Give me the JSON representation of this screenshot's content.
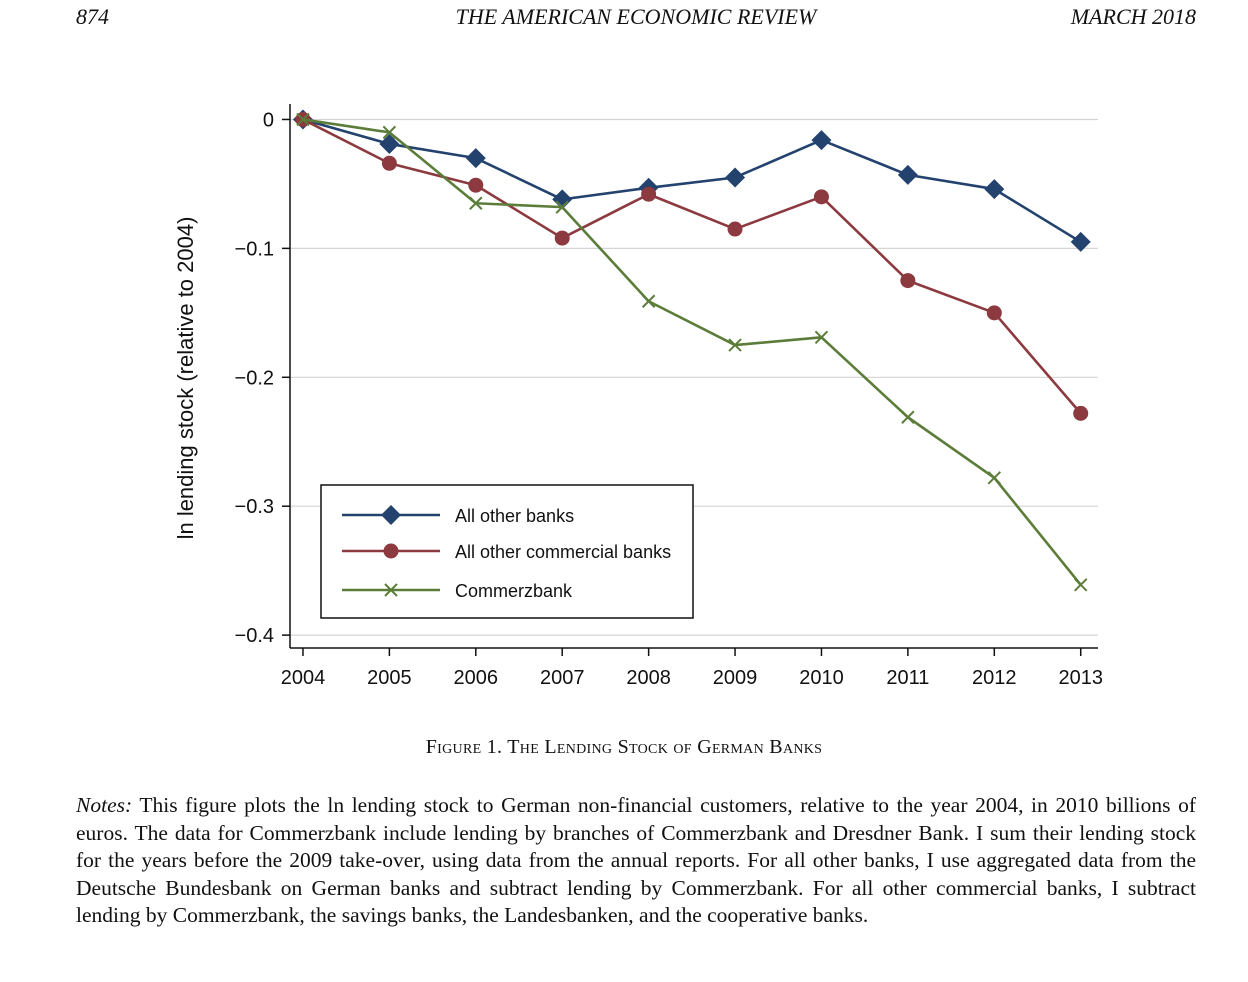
{
  "header": {
    "page_number": "874",
    "journal": "THE AMERICAN ECONOMIC REVIEW",
    "issue": "MARCH 2018"
  },
  "figure": {
    "caption": "Figure 1. The Lending Stock of German Banks",
    "notes_label": "Notes:",
    "notes_text": "This figure plots the ln lending stock to German non-financial customers, relative to the year 2004, in 2010 billions of euros. The data for Commerzbank include lending by branches of Commerzbank and Dresdner Bank. I sum their lending stock for the years before the 2009 take-over, using data from the annual reports. For all other banks, I use aggregated data from the Deutsche Bundesbank on German banks and subtract lending by Commerzbank. For all other commercial banks, I subtract lending by Commerzbank, the savings banks, the Landesbanken, and the cooperative banks."
  },
  "chart_data": {
    "type": "line",
    "title": "",
    "xlabel": "",
    "ylabel": "ln lending stock (relative to 2004)",
    "x": [
      2004,
      2005,
      2006,
      2007,
      2008,
      2009,
      2010,
      2011,
      2012,
      2013
    ],
    "x_ticks": [
      "2004",
      "2005",
      "2006",
      "2007",
      "2008",
      "2009",
      "2010",
      "2011",
      "2012",
      "2013"
    ],
    "y_ticks": [
      0,
      -0.1,
      -0.2,
      -0.3,
      -0.4
    ],
    "y_tick_labels": [
      "0",
      "−0.1",
      "−0.2",
      "−0.3",
      "−0.4"
    ],
    "ylim": [
      -0.41,
      0.012
    ],
    "xlim": [
      2003.85,
      2013.2
    ],
    "grid": "horizontal",
    "legend_position": "bottom-left",
    "series": [
      {
        "name": "All other banks",
        "marker": "diamond",
        "color": "#23426e",
        "values": [
          0,
          -0.019,
          -0.03,
          -0.062,
          -0.053,
          -0.045,
          -0.016,
          -0.043,
          -0.054,
          -0.095
        ]
      },
      {
        "name": "All other commercial banks",
        "marker": "circle",
        "color": "#8c3a3f",
        "values": [
          0,
          -0.034,
          -0.051,
          -0.092,
          -0.058,
          -0.085,
          -0.06,
          -0.125,
          -0.15,
          -0.228
        ]
      },
      {
        "name": "Commerzbank",
        "marker": "x",
        "color": "#5c7d3a",
        "values": [
          0,
          -0.01,
          -0.065,
          -0.068,
          -0.141,
          -0.175,
          -0.169,
          -0.231,
          -0.278,
          -0.361
        ]
      }
    ]
  }
}
